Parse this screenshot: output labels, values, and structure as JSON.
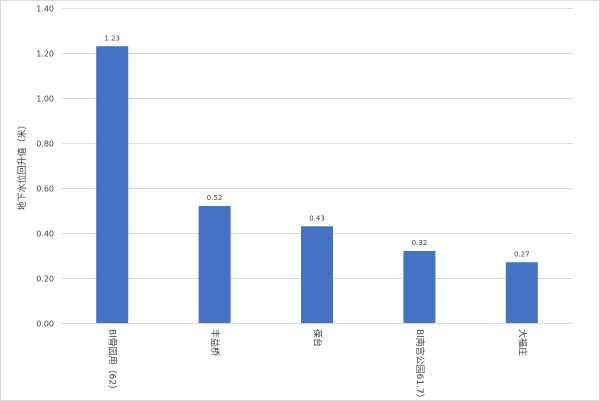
{
  "chart_data": {
    "type": "bar",
    "title": "",
    "xlabel": "",
    "ylabel": "地下水位回升值（米）",
    "categories": [
      "Bl骨园用（62）",
      "丰益桥",
      "葆台",
      "Bl南宫公园61.7）",
      "大福庄"
    ],
    "values": [
      1.23,
      0.52,
      0.43,
      0.32,
      0.27
    ],
    "value_labels": [
      "1.23",
      "0.52",
      "0.43",
      "0.32",
      "0.27"
    ],
    "ylim": [
      0,
      1.4
    ],
    "yticks": [
      "0.00",
      "0.20",
      "0.40",
      "0.60",
      "0.80",
      "1.00",
      "1.20",
      "1.40"
    ],
    "grid": true,
    "legend": "none",
    "colors": {
      "bar": "#4472c4",
      "grid": "#d9d9d9",
      "text": "#404040"
    }
  }
}
